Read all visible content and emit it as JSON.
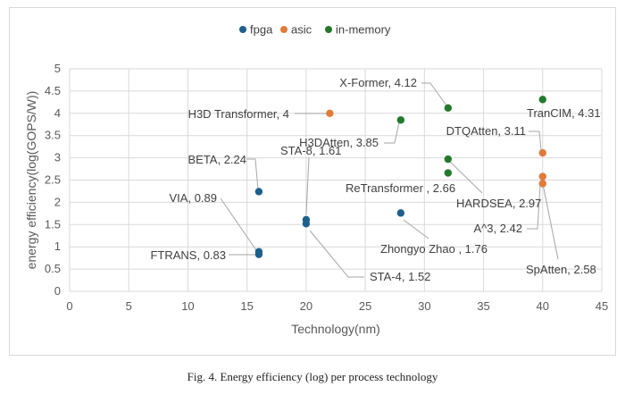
{
  "caption": "Fig. 4.  Energy efficiency (log) per process technology",
  "chart_data": {
    "type": "scatter",
    "title": "",
    "xlabel": "Technology(nm)",
    "ylabel": "energy efficiency(log(GOPS/W))",
    "xlim": [
      0,
      45
    ],
    "ylim": [
      0,
      5
    ],
    "xticks": [
      0,
      5,
      10,
      15,
      20,
      25,
      30,
      35,
      40,
      45
    ],
    "yticks": [
      0,
      0.5,
      1,
      1.5,
      2,
      2.5,
      3,
      3.5,
      4,
      4.5,
      5
    ],
    "grid": true,
    "legend_position": "top",
    "colors": {
      "fpga": "#1f5f8b",
      "asic": "#e07b39",
      "in-memory": "#237a2c"
    },
    "series": [
      {
        "name": "fpga",
        "points": [
          {
            "x": 16,
            "y": 2.24,
            "label": "BETA, 2.24"
          },
          {
            "x": 16,
            "y": 0.89,
            "label": "VIA, 0.89"
          },
          {
            "x": 16,
            "y": 0.83,
            "label": "FTRANS, 0.83"
          },
          {
            "x": 20,
            "y": 1.61,
            "label": "STA-8, 1.61"
          },
          {
            "x": 20,
            "y": 1.52,
            "label": "STA-4, 1.52"
          },
          {
            "x": 28,
            "y": 1.76,
            "label": "Zhongyo Zhao , 1.76"
          }
        ]
      },
      {
        "name": "asic",
        "points": [
          {
            "x": 22,
            "y": 4,
            "label": "H3D Transformer, 4"
          },
          {
            "x": 40,
            "y": 3.11,
            "label": "DTQAtten, 3.11"
          },
          {
            "x": 40,
            "y": 2.58,
            "label": "SpAtten, 2.58"
          },
          {
            "x": 40,
            "y": 2.42,
            "label": "A^3, 2.42"
          }
        ]
      },
      {
        "name": "in-memory",
        "points": [
          {
            "x": 28,
            "y": 3.85,
            "label": "H3DAtten, 3.85"
          },
          {
            "x": 32,
            "y": 4.12,
            "label": "X-Former, 4.12"
          },
          {
            "x": 32,
            "y": 2.97,
            "label": "HARDSEA, 2.97"
          },
          {
            "x": 32,
            "y": 2.66,
            "label": "ReTransformer , 2.66"
          },
          {
            "x": 40,
            "y": 4.31,
            "label": "TranCIM, 4.31"
          }
        ]
      }
    ]
  }
}
